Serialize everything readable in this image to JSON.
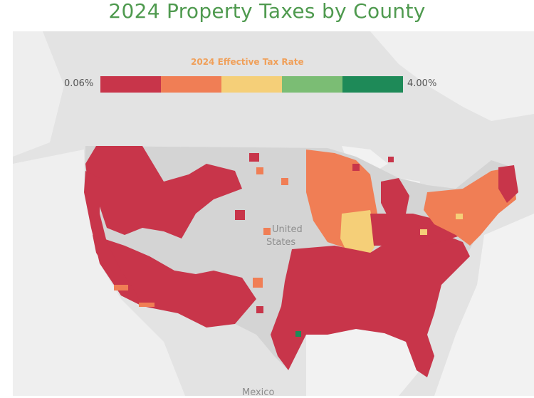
{
  "title": "2024 Property Taxes by County",
  "legend": {
    "title": "2024 Effective Tax Rate",
    "min_label": "0.06%",
    "max_label": "4.00%",
    "min_value": 0.06,
    "max_value": 4.0,
    "colors": [
      "#c8354a",
      "#f07e55",
      "#f5cf78",
      "#7bbd74",
      "#1e8a58"
    ]
  },
  "map_labels": {
    "country_us_line1": "United",
    "country_us_line2": "States",
    "country_mexico": "Mexico"
  },
  "colors": {
    "background": "#e6e6e6",
    "land": "#d9d9d9",
    "water": "#f2f2f2",
    "title": "#4f9a4f"
  }
}
